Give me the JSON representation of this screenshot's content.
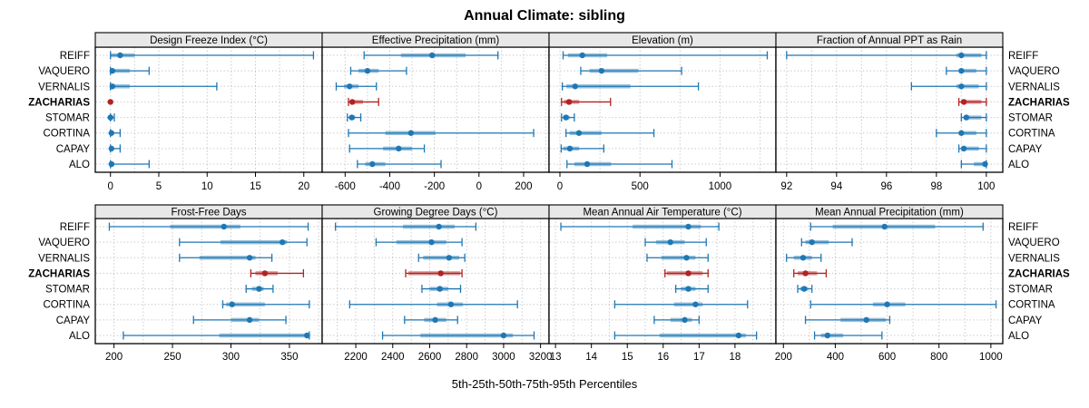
{
  "title": "Annual Climate: sibling",
  "xlabel": "5th-25th-50th-75th-95th Percentiles",
  "sites": [
    "REIFF",
    "VAQUERO",
    "VERNALIS",
    "ZACHARIAS",
    "STOMAR",
    "CORTINA",
    "CAPAY",
    "ALO"
  ],
  "highlight_site": "ZACHARIAS",
  "percentiles": [
    "5th",
    "25th",
    "50th",
    "75th",
    "95th"
  ],
  "colors": {
    "series_blue": "#1f77b4",
    "highlight_red": "#b22222",
    "strip_bg": "#e8e8e8",
    "grid": "#c0c0c0",
    "border": "#000000"
  },
  "chart_data": [
    {
      "type": "dotplot-interval",
      "title": "Design Freeze Index (°C)",
      "row": 0,
      "col": 0,
      "xlim": [
        -1.57,
        21.9
      ],
      "ticks": [
        0,
        5,
        10,
        15,
        20
      ],
      "tick_labels": [
        "0",
        "5",
        "10",
        "15",
        "20"
      ],
      "values": {
        "REIFF": [
          0,
          0,
          1,
          2.5,
          21
        ],
        "VAQUERO": [
          0,
          0,
          0.2,
          2,
          4
        ],
        "VERNALIS": [
          0,
          0,
          0.2,
          2,
          11
        ],
        "ZACHARIAS": [
          0,
          0,
          0,
          0,
          0
        ],
        "STOMAR": [
          0,
          0,
          0,
          0.1,
          0.4
        ],
        "CORTINA": [
          0,
          0,
          0.1,
          0.3,
          1
        ],
        "CAPAY": [
          0,
          0,
          0.1,
          0.3,
          1
        ],
        "ALO": [
          0,
          0,
          0.1,
          0.4,
          4
        ]
      }
    },
    {
      "type": "dotplot-interval",
      "title": "Effective Precipitation (mm)",
      "row": 0,
      "col": 1,
      "xlim": [
        -703,
        314
      ],
      "ticks": [
        -600,
        -400,
        -200,
        0,
        200
      ],
      "tick_labels": [
        "-600",
        "-400",
        "-200",
        "0",
        "200"
      ],
      "values": {
        "REIFF": [
          -515,
          -350,
          -210,
          -60,
          85
        ],
        "VAQUERO": [
          -575,
          -540,
          -500,
          -450,
          -325
        ],
        "VERNALIS": [
          -640,
          -605,
          -580,
          -540,
          -460
        ],
        "ZACHARIAS": [
          -585,
          -578,
          -568,
          -520,
          -450
        ],
        "STOMAR": [
          -590,
          -580,
          -570,
          -555,
          -530
        ],
        "CORTINA": [
          -585,
          -420,
          -305,
          -195,
          245
        ],
        "CAPAY": [
          -580,
          -430,
          -360,
          -300,
          -245
        ],
        "ALO": [
          -545,
          -510,
          -478,
          -420,
          -170
        ]
      }
    },
    {
      "type": "dotplot-interval",
      "title": "Elevation (m)",
      "row": 0,
      "col": 2,
      "xlim": [
        -68,
        1349
      ],
      "ticks": [
        0,
        500,
        1000
      ],
      "tick_labels": [
        "0",
        "500",
        "1000"
      ],
      "values": {
        "REIFF": [
          20,
          50,
          140,
          295,
          1295
        ],
        "VAQUERO": [
          130,
          185,
          260,
          490,
          760
        ],
        "VERNALIS": [
          15,
          40,
          95,
          440,
          865
        ],
        "ZACHARIAS": [
          10,
          25,
          57,
          120,
          316
        ],
        "STOMAR": [
          10,
          20,
          38,
          60,
          90
        ],
        "CORTINA": [
          38,
          60,
          119,
          260,
          587
        ],
        "CAPAY": [
          8,
          20,
          62,
          120,
          274
        ],
        "ALO": [
          44,
          90,
          170,
          320,
          700
        ]
      }
    },
    {
      "type": "dotplot-interval",
      "title": "Fraction of Annual PPT as Rain",
      "row": 0,
      "col": 3,
      "xlim": [
        91.57,
        100.66
      ],
      "ticks": [
        92,
        94,
        96,
        98,
        100
      ],
      "tick_labels": [
        "92",
        "94",
        "96",
        "98",
        "100"
      ],
      "values": {
        "REIFF": [
          92,
          98.8,
          99,
          99.8,
          100
        ],
        "VAQUERO": [
          98.4,
          98.9,
          99,
          99.6,
          100
        ],
        "VERNALIS": [
          97,
          98.8,
          99,
          99.7,
          100
        ],
        "ZACHARIAS": [
          98.9,
          99,
          99.1,
          99.8,
          100
        ],
        "STOMAR": [
          99,
          99.1,
          99.2,
          99.8,
          100
        ],
        "CORTINA": [
          98,
          98.9,
          99,
          99.6,
          100
        ],
        "CAPAY": [
          98.9,
          99,
          99.1,
          99.7,
          100
        ],
        "ALO": [
          99,
          99.5,
          99.95,
          100,
          100
        ]
      }
    },
    {
      "type": "dotplot-interval",
      "title": "Frost-Free Days",
      "row": 1,
      "col": 0,
      "xlim": [
        184,
        378
      ],
      "ticks": [
        200,
        250,
        300,
        350
      ],
      "tick_labels": [
        "200",
        "250",
        "300",
        "350"
      ],
      "values": {
        "REIFF": [
          196,
          248,
          294,
          308,
          366
        ],
        "VAQUERO": [
          256,
          291,
          344,
          348,
          365
        ],
        "VERNALIS": [
          256,
          273,
          316,
          321,
          335
        ],
        "ZACHARIAS": [
          317,
          321,
          329,
          340,
          362
        ],
        "STOMAR": [
          313,
          318,
          324,
          328,
          336
        ],
        "CORTINA": [
          293,
          296,
          301,
          329,
          367
        ],
        "CAPAY": [
          268,
          300,
          316,
          324,
          347
        ],
        "ALO": [
          208,
          290,
          365,
          366,
          367
        ]
      }
    },
    {
      "type": "dotplot-interval",
      "title": "Growing Degree Days (°C)",
      "row": 1,
      "col": 1,
      "xlim": [
        2018,
        3246
      ],
      "ticks": [
        2200,
        2400,
        2600,
        2800,
        3000,
        3200
      ],
      "tick_labels": [
        "2200",
        "2400",
        "2600",
        "2800",
        "3000",
        "3200"
      ],
      "values": {
        "REIFF": [
          2090,
          2455,
          2650,
          2735,
          2850
        ],
        "VAQUERO": [
          2310,
          2420,
          2610,
          2690,
          2775
        ],
        "VERNALIS": [
          2540,
          2565,
          2705,
          2760,
          2790
        ],
        "ZACHARIAS": [
          2470,
          2485,
          2660,
          2765,
          2775
        ],
        "STOMAR": [
          2558,
          2600,
          2655,
          2700,
          2767
        ],
        "CORTINA": [
          2167,
          2640,
          2715,
          2780,
          3075
        ],
        "CAPAY": [
          2464,
          2570,
          2630,
          2690,
          2751
        ],
        "ALO": [
          2345,
          2550,
          3000,
          3050,
          3165
        ]
      }
    },
    {
      "type": "dotplot-interval",
      "title": "Mean Annual Air Temperature (°C)",
      "row": 1,
      "col": 2,
      "xlim": [
        12.82,
        19.14
      ],
      "ticks": [
        13,
        14,
        15,
        16,
        17,
        18
      ],
      "tick_labels": [
        "13",
        "14",
        "15",
        "16",
        "17",
        "18"
      ],
      "values": {
        "REIFF": [
          13.15,
          15.15,
          16.7,
          17.05,
          17.55
        ],
        "VAQUERO": [
          15.5,
          15.8,
          16.2,
          16.6,
          17.2
        ],
        "VERNALIS": [
          15.55,
          15.95,
          16.65,
          16.9,
          17.25
        ],
        "ZACHARIAS": [
          16.05,
          16.1,
          16.7,
          17.1,
          17.25
        ],
        "STOMAR": [
          16.35,
          16.5,
          16.7,
          16.9,
          17.25
        ],
        "CORTINA": [
          14.65,
          16.3,
          16.9,
          17.1,
          18.35
        ],
        "CAPAY": [
          15.75,
          16.2,
          16.6,
          16.8,
          17.0
        ],
        "ALO": [
          14.65,
          15.9,
          18.1,
          18.3,
          18.6
        ]
      }
    },
    {
      "type": "dotplot-interval",
      "title": "Mean Annual Precipitation (mm)",
      "row": 1,
      "col": 3,
      "xlim": [
        171,
        1046
      ],
      "ticks": [
        200,
        400,
        600,
        800,
        1000
      ],
      "tick_labels": [
        "200",
        "400",
        "600",
        "800",
        "1000"
      ],
      "values": {
        "REIFF": [
          305,
          390,
          590,
          785,
          970
        ],
        "VAQUERO": [
          270,
          285,
          310,
          375,
          465
        ],
        "VERNALIS": [
          212,
          240,
          276,
          310,
          345
        ],
        "ZACHARIAS": [
          240,
          255,
          285,
          330,
          365
        ],
        "STOMAR": [
          255,
          265,
          280,
          295,
          310
        ],
        "CORTINA": [
          305,
          545,
          600,
          670,
          1020
        ],
        "CAPAY": [
          285,
          420,
          520,
          595,
          610
        ],
        "ALO": [
          320,
          345,
          370,
          430,
          580
        ]
      }
    }
  ]
}
